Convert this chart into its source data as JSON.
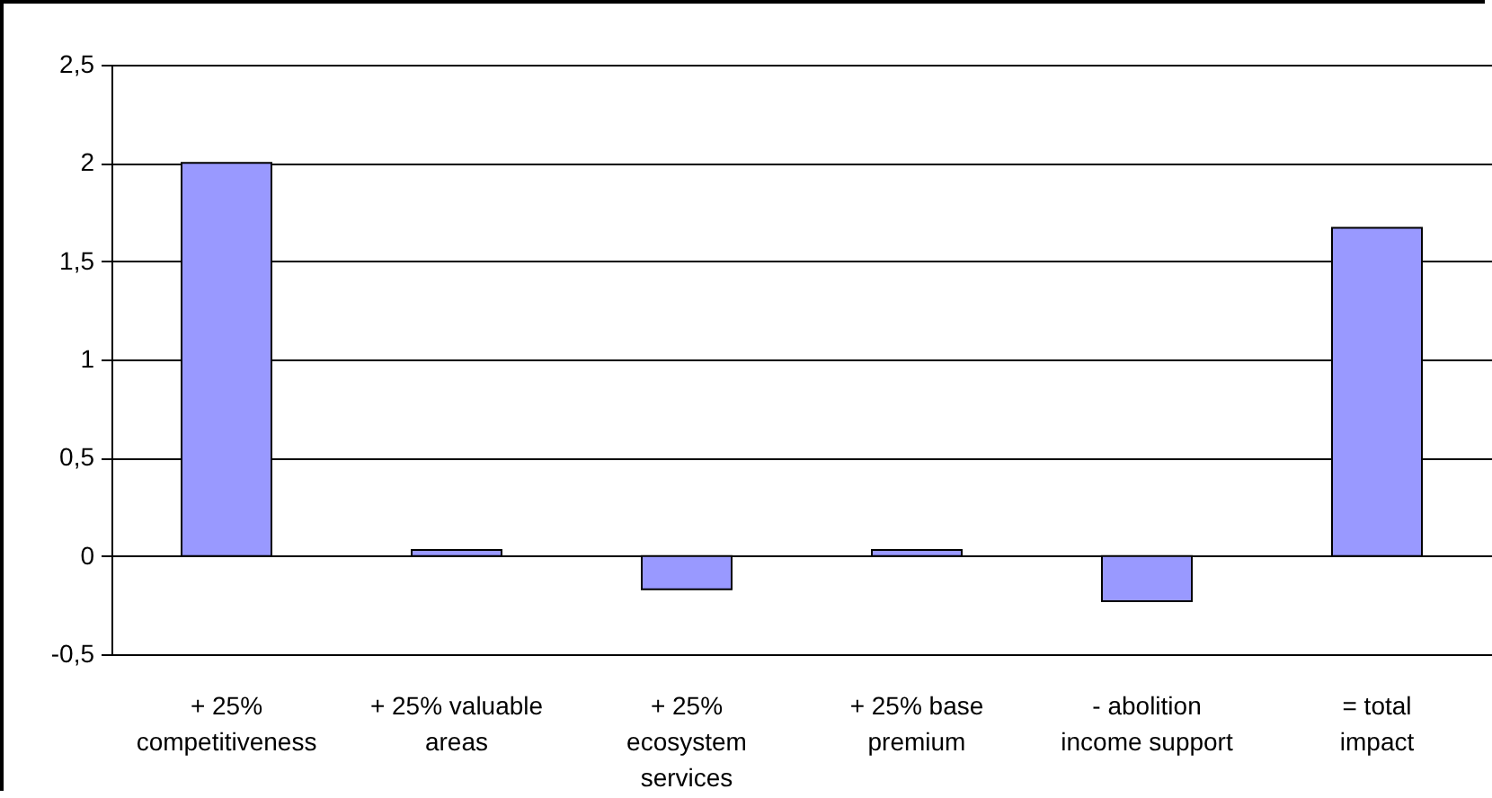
{
  "chart_data": {
    "type": "bar",
    "categories": [
      "+ 25%\ncompetitiveness",
      "+ 25% valuable\nareas",
      "+ 25%\necosystem\nservices",
      "+ 25%   base\npremium",
      "- abolition\nincome support",
      "= total\nimpact"
    ],
    "values": [
      2,
      0.03,
      -0.17,
      0.03,
      -0.23,
      1.67
    ],
    "color": "#9999ff",
    "ylim": [
      -0.5,
      2.5
    ],
    "yticks": [
      {
        "value": -0.5,
        "label": "-0,5"
      },
      0,
      {
        "value": 0.5,
        "label": "0,5"
      },
      1,
      {
        "value": 1.5,
        "label": "1,5"
      },
      2,
      {
        "value": 2.5,
        "label": "2,5"
      }
    ],
    "grid": "y"
  }
}
